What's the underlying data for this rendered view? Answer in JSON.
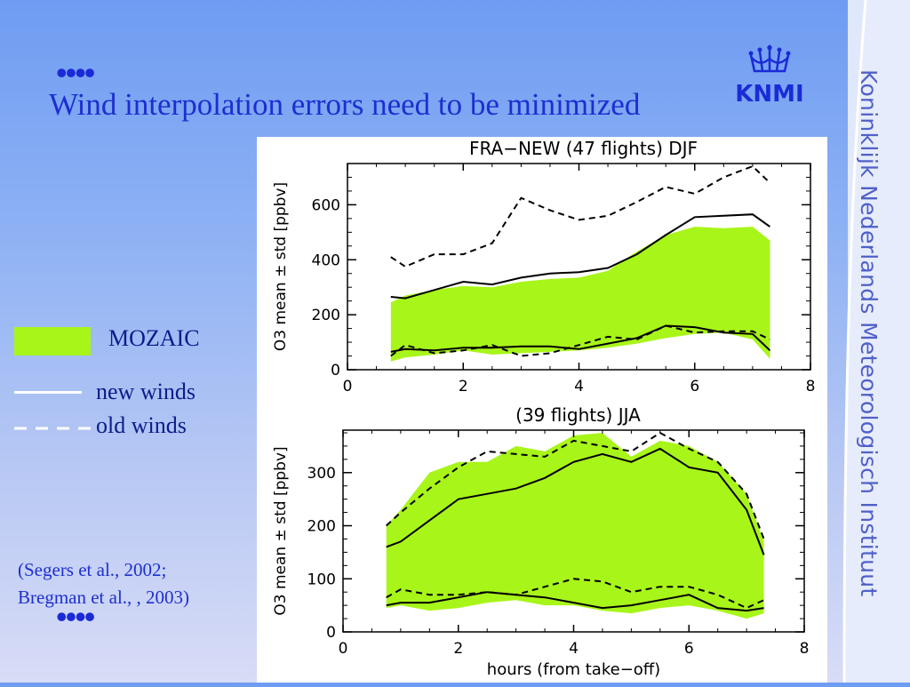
{
  "slide": {
    "title": "Wind interpolation errors need to be minimized",
    "top_dots": "••••",
    "bottom_dots": "••••",
    "logo_text": "KNMI",
    "sidebar_text": "Koninklijk Nederlands Meteorologisch Instituut",
    "citation_line1": "(Segers et al., 2002;",
    "citation_line2": "Bregman et al., , 2003)"
  },
  "legend": {
    "mozaic": "MOZAIC",
    "new_winds": "new winds",
    "old_winds": "old winds"
  },
  "colors": {
    "title": "#1d2fd0",
    "mozaic_fill": "#a8f51a",
    "plot_line": "#000000",
    "sidebar_text": "#5060c8"
  },
  "chart_data": [
    {
      "type": "area",
      "title": "FRA−NEW (47 flights) DJF",
      "xlabel": "",
      "ylabel": "O3 mean ± std [ppbv]",
      "xlim": [
        0,
        8
      ],
      "ylim": [
        0,
        750
      ],
      "xticks": [
        0,
        2,
        4,
        6,
        8
      ],
      "yticks": [
        0,
        200,
        400,
        600
      ],
      "grid": false,
      "x": [
        0.75,
        1.0,
        1.5,
        2.0,
        2.5,
        3.0,
        3.5,
        4.0,
        4.5,
        5.0,
        5.5,
        6.0,
        6.5,
        7.0,
        7.3
      ],
      "series": [
        {
          "name": "MOZAIC",
          "kind": "band",
          "lower": [
            30,
            45,
            55,
            70,
            55,
            60,
            65,
            70,
            80,
            95,
            115,
            130,
            135,
            110,
            40
          ],
          "upper": [
            245,
            270,
            290,
            305,
            300,
            320,
            330,
            335,
            360,
            430,
            490,
            520,
            515,
            520,
            470
          ]
        },
        {
          "name": "new winds",
          "kind": "solid",
          "upper": [
            265,
            260,
            290,
            320,
            310,
            335,
            350,
            355,
            370,
            420,
            490,
            555,
            560,
            565,
            520
          ],
          "lower": [
            65,
            75,
            70,
            80,
            80,
            85,
            85,
            75,
            95,
            115,
            160,
            155,
            135,
            130,
            70
          ]
        },
        {
          "name": "old winds",
          "kind": "dashed",
          "upper": [
            410,
            375,
            420,
            420,
            460,
            625,
            580,
            545,
            560,
            610,
            665,
            640,
            700,
            740,
            680
          ],
          "lower": [
            50,
            90,
            60,
            70,
            90,
            50,
            60,
            90,
            120,
            110,
            160,
            135,
            140,
            140,
            110
          ]
        }
      ]
    },
    {
      "type": "area",
      "title": "(39 flights) JJA",
      "xlabel": "hours (from take−off)",
      "ylabel": "O3 mean ± std [ppbv]",
      "xlim": [
        0,
        8
      ],
      "ylim": [
        0,
        380
      ],
      "xticks": [
        0,
        2,
        4,
        6,
        8
      ],
      "yticks": [
        0,
        100,
        200,
        300
      ],
      "grid": false,
      "x": [
        0.75,
        1.0,
        1.5,
        2.0,
        2.5,
        3.0,
        3.5,
        4.0,
        4.5,
        5.0,
        5.5,
        6.0,
        6.5,
        7.0,
        7.3
      ],
      "series": [
        {
          "name": "MOZAIC",
          "kind": "band",
          "lower": [
            45,
            50,
            40,
            45,
            55,
            60,
            50,
            50,
            40,
            35,
            45,
            50,
            40,
            25,
            35
          ],
          "upper": [
            200,
            230,
            300,
            320,
            320,
            350,
            340,
            370,
            375,
            330,
            360,
            350,
            320,
            260,
            170
          ]
        },
        {
          "name": "new winds",
          "kind": "solid",
          "upper": [
            160,
            170,
            210,
            250,
            260,
            270,
            290,
            320,
            335,
            320,
            345,
            310,
            300,
            230,
            145
          ],
          "lower": [
            50,
            55,
            55,
            65,
            75,
            70,
            65,
            55,
            45,
            50,
            60,
            70,
            45,
            40,
            45
          ]
        },
        {
          "name": "old winds",
          "kind": "dashed",
          "upper": [
            200,
            225,
            270,
            310,
            340,
            335,
            330,
            360,
            350,
            340,
            375,
            345,
            320,
            260,
            175
          ],
          "lower": [
            65,
            80,
            70,
            70,
            75,
            70,
            85,
            100,
            95,
            75,
            85,
            85,
            70,
            45,
            60
          ]
        }
      ]
    }
  ]
}
